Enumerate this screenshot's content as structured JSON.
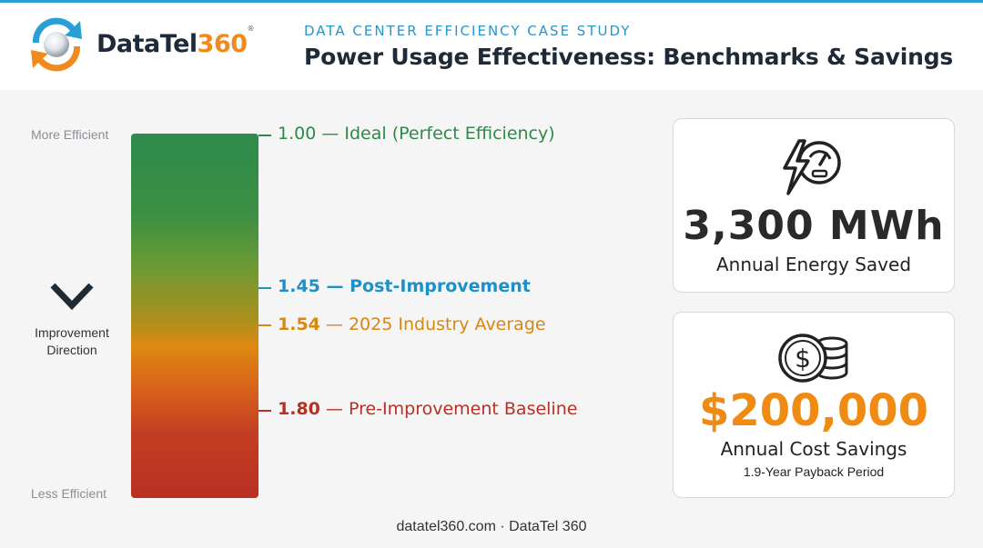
{
  "header": {
    "brand_text": "DataTel",
    "brand_number": "360",
    "brand_mark": "®",
    "subtitle": "DATA CENTER EFFICIENCY CASE STUDY",
    "title": "Power Usage Effectiveness: Benchmarks & Savings"
  },
  "scale": {
    "top_label": "More Efficient",
    "bottom_label": "Less Efficient",
    "direction_label": "Improvement Direction",
    "icon": "chevron-down-icon",
    "markers": [
      {
        "value": "1.00",
        "text": " — Ideal (Perfect Efficiency)",
        "color": "#2c8a46"
      },
      {
        "value": "1.45",
        "text": " — Post-Improvement",
        "color": "#1f8fc8"
      },
      {
        "value": "1.54",
        "text": " — 2025 Industry Average",
        "color": "#d9870f"
      },
      {
        "value": "1.80",
        "text": " — Pre-Improvement Baseline",
        "color": "#b83023"
      }
    ]
  },
  "cards": {
    "energy": {
      "icon": "lightning-gauge-icon",
      "value": "3,300 MWh",
      "caption": "Annual Energy Saved"
    },
    "cost": {
      "icon": "dollar-coins-icon",
      "value": "$200,000",
      "caption": "Annual Cost Savings",
      "subcaption": "1.9-Year Payback Period",
      "accent": "#f08a12"
    }
  },
  "footer": {
    "text": "datatel360.com · DataTel 360"
  }
}
